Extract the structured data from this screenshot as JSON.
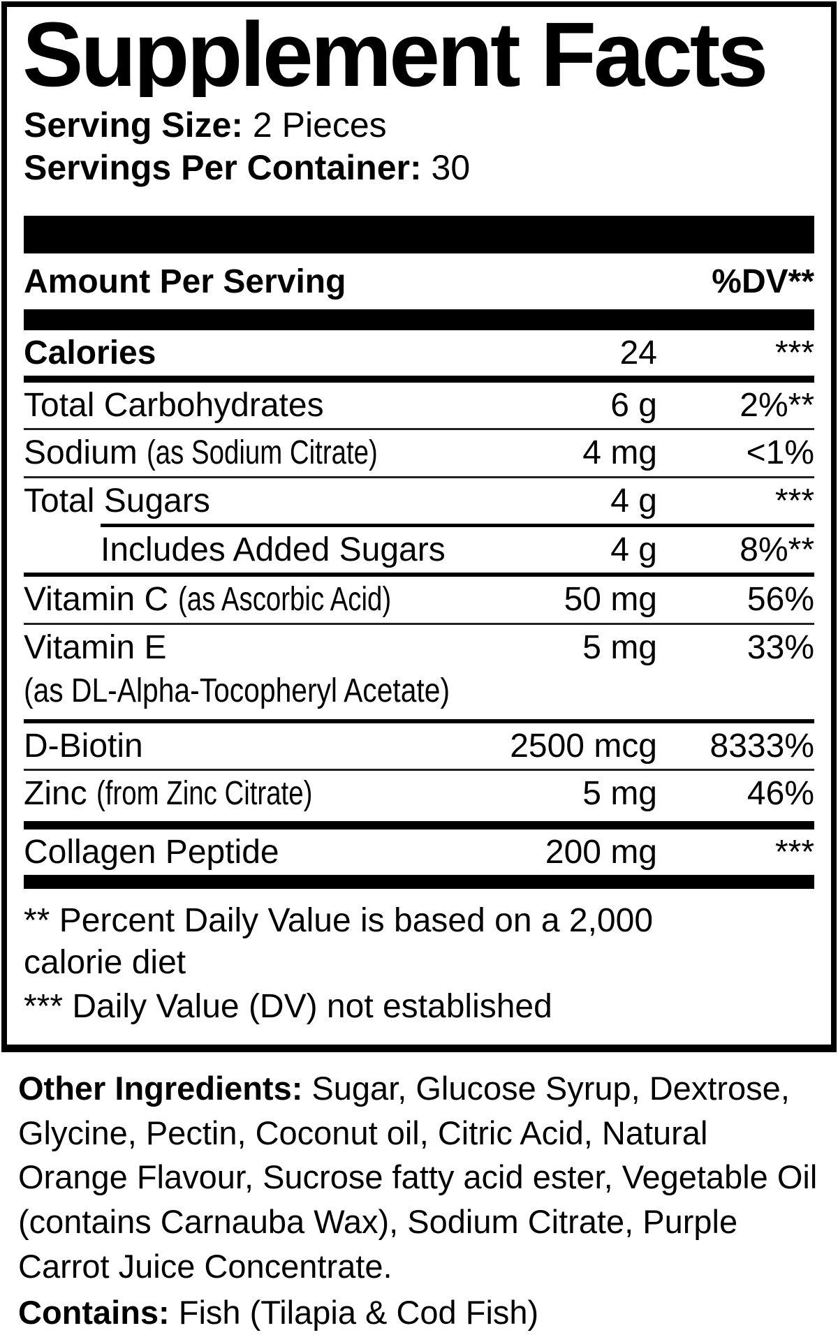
{
  "supplement_facts": {
    "title": "Supplement Facts",
    "serving_size": {
      "label": "Serving Size:",
      "value": "2 Pieces"
    },
    "servings_per_container": {
      "label": "Servings Per Container:",
      "value": "30"
    },
    "columns": {
      "amount_header": "Amount Per Serving",
      "dv_header": "%DV**"
    },
    "rows": [
      {
        "name": "Calories",
        "amount": "24",
        "dv": "***"
      },
      {
        "name": "Total Carbohydrates",
        "amount": "6 g",
        "dv": "2%**"
      },
      {
        "name": "Sodium",
        "note": "(as Sodium Citrate)",
        "amount": "4 mg",
        "dv": "<1%"
      },
      {
        "name": "Total Sugars",
        "amount": "4 g",
        "dv": "***"
      },
      {
        "name": "Includes Added Sugars",
        "amount": "4 g",
        "dv": "8%**"
      },
      {
        "name": "Vitamin C",
        "note": "(as Ascorbic Acid)",
        "amount": "50 mg",
        "dv": "56%"
      },
      {
        "name": "Vitamin E",
        "note_line": "(as DL-Alpha-Tocopheryl Acetate)",
        "amount": "5 mg",
        "dv": "33%"
      },
      {
        "name": "D-Biotin",
        "amount": "2500 mcg",
        "dv": "8333%"
      },
      {
        "name": "Zinc",
        "note": "(from Zinc Citrate)",
        "amount": "5 mg",
        "dv": "46%"
      },
      {
        "name": "Collagen Peptide",
        "amount": "200 mg",
        "dv": "***"
      }
    ],
    "footnotes": [
      "** Percent Daily Value is based on a 2,000 calorie diet",
      "*** Daily Value (DV) not established"
    ]
  },
  "other_ingredients": {
    "label": "Other Ingredients:",
    "text": " Sugar, Glucose Syrup, Dextrose, Glycine, Pectin, Coconut oil, Citric Acid, Natural Orange Flavour, Sucrose fatty acid ester, Vegetable Oil (contains Carnauba Wax), Sodium Citrate, Purple Carrot Juice Concentrate."
  },
  "contains": {
    "label": "Contains:",
    "text": " Fish (Tilapia & Cod Fish)"
  }
}
